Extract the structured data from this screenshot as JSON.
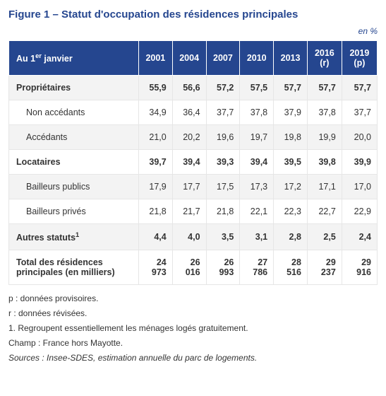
{
  "title_prefix": "Figure 1 – ",
  "title_main": "Statut d'occupation des résidences principales",
  "unit": "en %",
  "table": {
    "head_first_html": "Au 1<sup>er</sup> janvier",
    "columns": [
      "2001",
      "2004",
      "2007",
      "2010",
      "2013",
      "2016 (r)",
      "2019 (p)"
    ],
    "rows": [
      {
        "label_html": "Propriétaires",
        "vals": [
          "55,9",
          "56,6",
          "57,2",
          "57,5",
          "57,7",
          "57,7",
          "57,7"
        ],
        "bold": true,
        "indent": false,
        "shade": true
      },
      {
        "label_html": "Non accédants",
        "vals": [
          "34,9",
          "36,4",
          "37,7",
          "37,8",
          "37,9",
          "37,8",
          "37,7"
        ],
        "bold": false,
        "indent": true,
        "shade": false
      },
      {
        "label_html": "Accédants",
        "vals": [
          "21,0",
          "20,2",
          "19,6",
          "19,7",
          "19,8",
          "19,9",
          "20,0"
        ],
        "bold": false,
        "indent": true,
        "shade": true
      },
      {
        "label_html": "Locataires",
        "vals": [
          "39,7",
          "39,4",
          "39,3",
          "39,4",
          "39,5",
          "39,8",
          "39,9"
        ],
        "bold": true,
        "indent": false,
        "shade": false
      },
      {
        "label_html": "Bailleurs publics",
        "vals": [
          "17,9",
          "17,7",
          "17,5",
          "17,3",
          "17,2",
          "17,1",
          "17,0"
        ],
        "bold": false,
        "indent": true,
        "shade": true
      },
      {
        "label_html": "Bailleurs privés",
        "vals": [
          "21,8",
          "21,7",
          "21,8",
          "22,1",
          "22,3",
          "22,7",
          "22,9"
        ],
        "bold": false,
        "indent": true,
        "shade": false
      },
      {
        "label_html": "Autres statuts<sup>1</sup>",
        "vals": [
          "4,4",
          "4,0",
          "3,5",
          "3,1",
          "2,8",
          "2,5",
          "2,4"
        ],
        "bold": true,
        "indent": false,
        "shade": true
      },
      {
        "label_html": "Total des résidences principales (en milliers)",
        "vals": [
          "24 973",
          "26 016",
          "26 993",
          "27 786",
          "28 516",
          "29 237",
          "29 916"
        ],
        "bold": true,
        "indent": false,
        "shade": false
      }
    ]
  },
  "notes": [
    "p : données provisoires.",
    "r : données révisées.",
    "1. Regroupent essentiellement les ménages logés gratuitement.",
    "Champ : France hors Mayotte."
  ],
  "source": "Sources : Insee-SDES, estimation annuelle du parc de logements.",
  "colors": {
    "header_bg": "#25468f",
    "header_text": "#ffffff",
    "row_alt_bg": "#f3f3f3",
    "border": "#e6e6e6",
    "body_text": "#333333"
  }
}
